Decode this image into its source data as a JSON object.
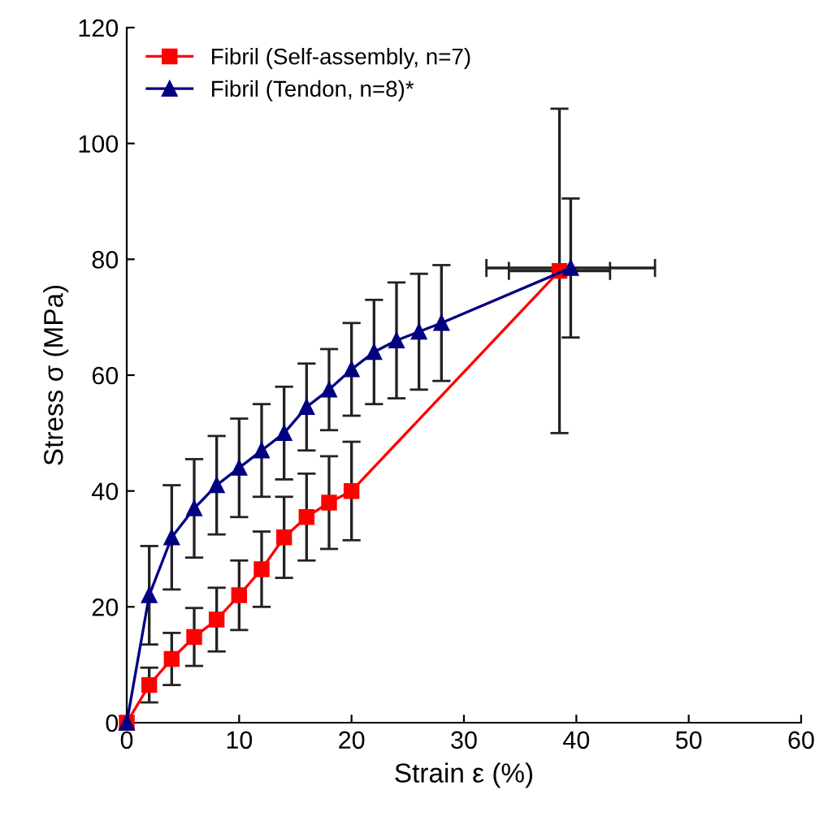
{
  "chart_data": {
    "type": "line",
    "xlabel": "Strain ε (%)",
    "ylabel": "Stress σ (MPa)",
    "xlim": [
      0,
      60
    ],
    "ylim": [
      0,
      120
    ],
    "xticks": [
      0,
      10,
      20,
      30,
      40,
      50,
      60
    ],
    "yticks": [
      0,
      20,
      40,
      60,
      80,
      100,
      120
    ],
    "grid": false,
    "legend": "top left",
    "line_style": "solid",
    "series": [
      {
        "name": "Fibril (Self-assembly, n=7)",
        "color": "#ff0000",
        "marker": "square",
        "x": [
          0,
          2,
          4,
          6,
          8,
          10,
          12,
          14,
          16,
          18,
          20,
          38.5
        ],
        "values": [
          0,
          6.5,
          11,
          14.8,
          17.8,
          22,
          26.5,
          32,
          35.5,
          38,
          40,
          78
        ],
        "errors": [
          null,
          3,
          4.5,
          5,
          5.5,
          6,
          6.5,
          7,
          7.5,
          8,
          8.5,
          28
        ],
        "xerrors": [
          null,
          null,
          null,
          null,
          null,
          null,
          null,
          null,
          null,
          null,
          null,
          4.5
        ]
      },
      {
        "name": "Fibril (Tendon, n=8)*",
        "color": "#000080",
        "marker": "triangle",
        "x": [
          0,
          2,
          4,
          6,
          8,
          10,
          12,
          14,
          16,
          18,
          20,
          22,
          24,
          26,
          28,
          39.5
        ],
        "values": [
          0,
          22,
          32,
          37,
          41,
          44,
          47,
          50,
          54.5,
          57.5,
          61,
          64,
          66,
          67.5,
          69,
          78.5
        ],
        "errors": [
          null,
          8.5,
          9,
          8.5,
          8.5,
          8.5,
          8,
          8,
          7.5,
          7,
          8,
          9,
          10,
          10,
          10,
          12
        ],
        "xerrors": [
          null,
          null,
          null,
          null,
          null,
          null,
          null,
          null,
          null,
          null,
          null,
          null,
          null,
          null,
          null,
          7.5
        ]
      }
    ]
  }
}
